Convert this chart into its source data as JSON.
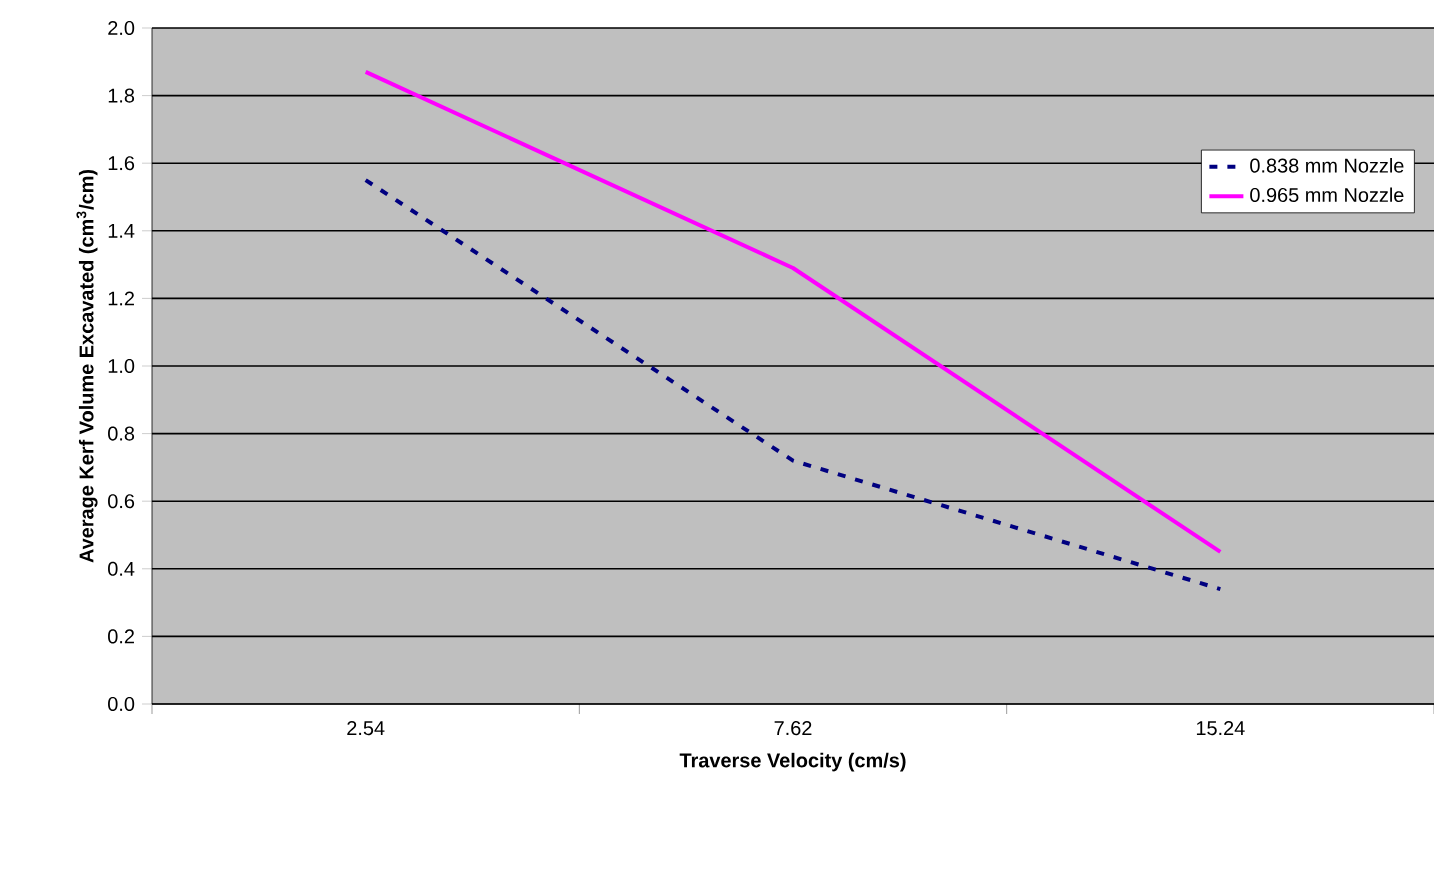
{
  "chart_data": {
    "type": "line",
    "xlabel": "Traverse Velocity (cm/s)",
    "ylabel": "Average Kerf Volume Excavated (cm$^{3}$/cm)",
    "categories": [
      "2.54",
      "7.62",
      "15.24"
    ],
    "series": [
      {
        "name": "0.838 mm Nozzle",
        "color": "#000080",
        "values": [
          1.55,
          0.72,
          0.34
        ],
        "line_style": "dashed"
      },
      {
        "name": "0.965 mm Nozzle",
        "color": "#ff00ff",
        "values": [
          1.87,
          1.29,
          0.45
        ],
        "line_style": "solid"
      }
    ],
    "ylim": [
      0,
      2
    ],
    "yticks": [
      {
        "value": 0,
        "label": "0.0"
      },
      {
        "value": 0.2,
        "label": "0.2"
      },
      {
        "value": 0.4,
        "label": "0.4"
      },
      {
        "value": 0.6,
        "label": "0.6"
      },
      {
        "value": 0.8,
        "label": "0.8"
      },
      {
        "value": 1,
        "label": "1.0"
      },
      {
        "value": 1.2,
        "label": "1.2"
      },
      {
        "value": 1.4,
        "label": "1.4"
      },
      {
        "value": 1.6,
        "label": "1.6"
      },
      {
        "value": 1.8,
        "label": "1.8"
      },
      {
        "value": 2,
        "label": "2.0"
      }
    ],
    "grid": "y",
    "legend": "top right",
    "marker": "none"
  }
}
